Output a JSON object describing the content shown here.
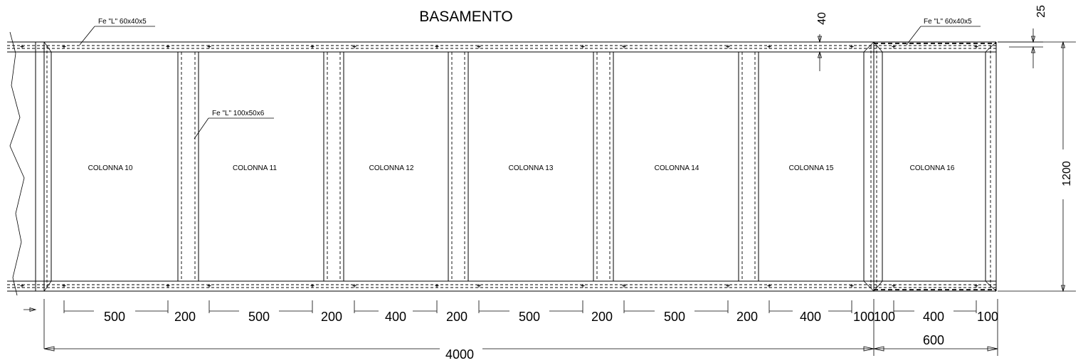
{
  "drawing": {
    "title": "BASAMENTO",
    "callouts": {
      "angle_top_left": "Fe \"L\" 60x40x5",
      "angle_top_right": "Fe \"L\" 60x40x5",
      "angle_vertical": "Fe \"L\" 100x50x6"
    },
    "columns": [
      "COLONNA 10",
      "COLONNA 11",
      "COLONNA 12",
      "COLONNA 13",
      "COLONNA 14",
      "COLONNA 15",
      "COLONNA 16"
    ],
    "dimensions": {
      "segments": [
        "500",
        "200",
        "500",
        "200",
        "400",
        "200",
        "500",
        "200",
        "500",
        "200",
        "400",
        "100",
        "100",
        "400",
        "100"
      ],
      "total_main": "4000",
      "total_right": "600",
      "height": "1200",
      "top_offset": "40",
      "top_offset_right": "25"
    }
  }
}
